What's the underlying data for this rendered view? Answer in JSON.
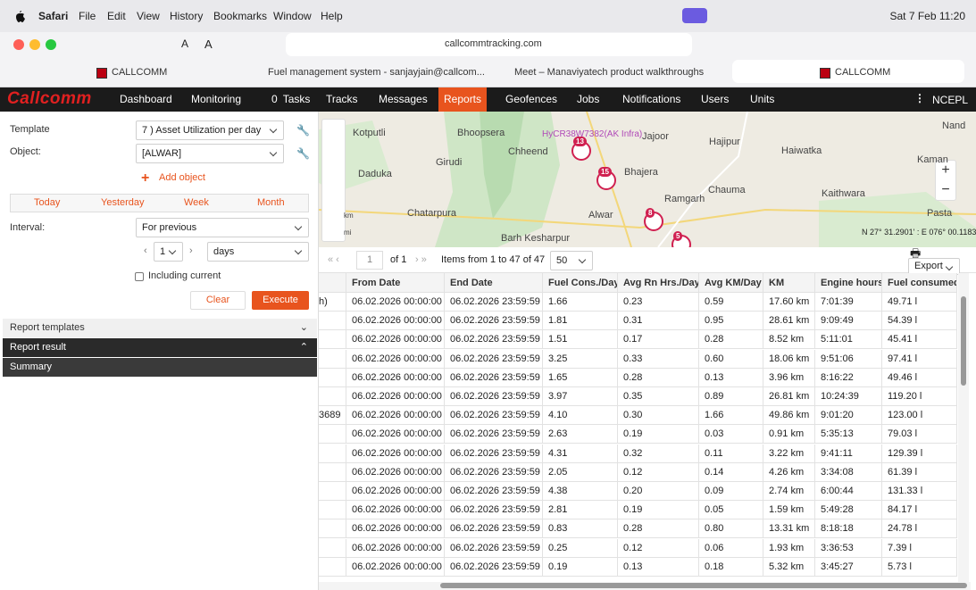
{
  "menubar": {
    "app": "Safari",
    "items": [
      "File",
      "Edit",
      "View",
      "History",
      "Bookmarks",
      "Window",
      "Help"
    ],
    "clock": "Sat 7 Feb 11:20"
  },
  "browser": {
    "reader_buttons": [
      "A",
      "A"
    ],
    "url": "callcommtracking.com",
    "tabs": [
      "CALLCOMM",
      "Fuel management system - sanjayjain@callcom...",
      "Meet – Manaviyatech product walkthroughs",
      "CALLCOMM"
    ]
  },
  "nav": {
    "logo": "Callcomm",
    "tasks_count": "0",
    "items": [
      "Dashboard",
      "Monitoring",
      "Tasks",
      "Tracks",
      "Messages",
      "Reports",
      "Geofences",
      "Jobs",
      "Notifications",
      "Users",
      "Units"
    ],
    "active": "Reports",
    "account": "NCEPL"
  },
  "panel": {
    "template_label": "Template",
    "template_value": "7 ) Asset Utilization per day",
    "object_label": "Object:",
    "object_value": "[ALWAR]",
    "add_object": "Add object",
    "periods": [
      "Today",
      "Yesterday",
      "Week",
      "Month"
    ],
    "interval_label": "Interval:",
    "interval_value": "For previous",
    "interval_count": "1",
    "interval_unit": "days",
    "including_current": "Including current",
    "clear": "Clear",
    "execute": "Execute",
    "sections": [
      "Report templates",
      "Report result",
      "Summary"
    ]
  },
  "map": {
    "places": [
      "Kotputli",
      "Bhoopsera",
      "Chheend",
      "Girudi",
      "Bhajera",
      "Jajoor",
      "Hajipur",
      "Haiwatka",
      "Nand",
      "Daduka",
      "Ramgarh",
      "Chauma",
      "Kaithwara",
      "Kaman",
      "Chatarpura",
      "Alwar",
      "Barh Kesharpur",
      "Pasta"
    ],
    "vehicle_label": "HyCR38W7382(AK Infra)",
    "markers": [
      "13",
      "15",
      "8",
      "5"
    ],
    "scale": [
      "km",
      "mi"
    ],
    "coordinates": "N 27° 31.2901' : E 076° 00.1183'"
  },
  "pager": {
    "page": "1",
    "of": "of 1",
    "items": "Items from 1 to 47 of 47",
    "page_size": "50",
    "export": "Export"
  },
  "table": {
    "header": [
      "From Date",
      "End Date",
      "Fuel Cons./Day",
      "Avg Rn Hrs./Day",
      "Avg KM/Day",
      "KM",
      "Engine hours",
      "Fuel consumed"
    ],
    "rows": [
      {
        "unit": "h)",
        "cells": [
          "06.02.2026 00:00:00",
          "06.02.2026 23:59:59",
          "1.66",
          "0.23",
          "0.59",
          "17.60 km",
          "7:01:39",
          "49.71 l"
        ]
      },
      {
        "cells": [
          "06.02.2026 00:00:00",
          "06.02.2026 23:59:59",
          "1.81",
          "0.31",
          "0.95",
          "28.61 km",
          "9:09:49",
          "54.39 l"
        ]
      },
      {
        "cells": [
          "06.02.2026 00:00:00",
          "06.02.2026 23:59:59",
          "1.51",
          "0.17",
          "0.28",
          "8.52 km",
          "5:11:01",
          "45.41 l"
        ]
      },
      {
        "cells": [
          "06.02.2026 00:00:00",
          "06.02.2026 23:59:59",
          "3.25",
          "0.33",
          "0.60",
          "18.06 km",
          "9:51:06",
          "97.41 l"
        ]
      },
      {
        "cells": [
          "06.02.2026 00:00:00",
          "06.02.2026 23:59:59",
          "1.65",
          "0.28",
          "0.13",
          "3.96 km",
          "8:16:22",
          "49.46 l"
        ]
      },
      {
        "cells": [
          "06.02.2026 00:00:00",
          "06.02.2026 23:59:59",
          "3.97",
          "0.35",
          "0.89",
          "26.81 km",
          "10:24:39",
          "119.20 l"
        ]
      },
      {
        "unit": "3689",
        "cells": [
          "06.02.2026 00:00:00",
          "06.02.2026 23:59:59",
          "4.10",
          "0.30",
          "1.66",
          "49.86 km",
          "9:01:20",
          "123.00 l"
        ]
      },
      {
        "cells": [
          "06.02.2026 00:00:00",
          "06.02.2026 23:59:59",
          "2.63",
          "0.19",
          "0.03",
          "0.91 km",
          "5:35:13",
          "79.03 l"
        ]
      },
      {
        "cells": [
          "06.02.2026 00:00:00",
          "06.02.2026 23:59:59",
          "4.31",
          "0.32",
          "0.11",
          "3.22 km",
          "9:41:11",
          "129.39 l"
        ]
      },
      {
        "cells": [
          "06.02.2026 00:00:00",
          "06.02.2026 23:59:59",
          "2.05",
          "0.12",
          "0.14",
          "4.26 km",
          "3:34:08",
          "61.39 l"
        ]
      },
      {
        "cells": [
          "06.02.2026 00:00:00",
          "06.02.2026 23:59:59",
          "4.38",
          "0.20",
          "0.09",
          "2.74 km",
          "6:00:44",
          "131.33 l"
        ]
      },
      {
        "cells": [
          "06.02.2026 00:00:00",
          "06.02.2026 23:59:59",
          "2.81",
          "0.19",
          "0.05",
          "1.59 km",
          "5:49:28",
          "84.17 l"
        ]
      },
      {
        "cells": [
          "06.02.2026 00:00:00",
          "06.02.2026 23:59:59",
          "0.83",
          "0.28",
          "0.80",
          "13.31 km",
          "8:18:18",
          "24.78 l"
        ]
      },
      {
        "cells": [
          "06.02.2026 00:00:00",
          "06.02.2026 23:59:59",
          "0.25",
          "0.12",
          "0.06",
          "1.93 km",
          "3:36:53",
          "7.39 l"
        ]
      },
      {
        "cells": [
          "06.02.2026 00:00:00",
          "06.02.2026 23:59:59",
          "0.19",
          "0.13",
          "0.18",
          "5.32 km",
          "3:45:27",
          "5.73 l"
        ]
      }
    ]
  }
}
